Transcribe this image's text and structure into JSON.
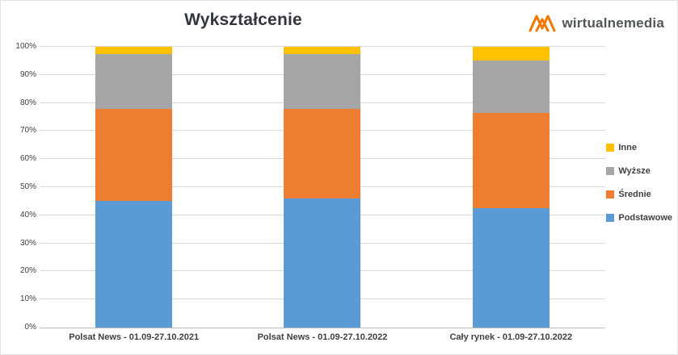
{
  "brand": {
    "logo_text": "wirtualnemedia",
    "logo_color": "#F07800",
    "text_color": "#55565A"
  },
  "chart_data": {
    "type": "bar",
    "subtype": "stacked-percent",
    "title": "Wykształcenie",
    "categories": [
      "Polsat News - 01.09-27.10.2021",
      "Polsat News - 01.09-27.10.2022",
      "Cały rynek - 01.09-27.10.2022"
    ],
    "series": [
      {
        "name": "Podstawowe",
        "color": "#5B9BD5",
        "values": [
          45,
          46,
          42.5
        ]
      },
      {
        "name": "Średnie",
        "color": "#ED7D31",
        "values": [
          33,
          32,
          34
        ]
      },
      {
        "name": "Wyższe",
        "color": "#A5A5A5",
        "values": [
          19.5,
          19.5,
          18.5
        ]
      },
      {
        "name": "Inne",
        "color": "#FFC000",
        "values": [
          2.5,
          2.5,
          5
        ]
      }
    ],
    "y_axis": {
      "min": 0,
      "max": 100,
      "step": 10,
      "tick_suffix": "%"
    },
    "grid": true,
    "legend": {
      "position": "right",
      "order": [
        "Inne",
        "Wyższe",
        "Średnie",
        "Podstawowe"
      ]
    }
  }
}
